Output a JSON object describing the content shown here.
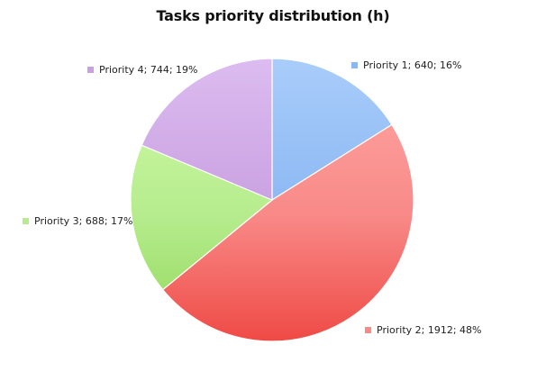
{
  "chart_data": {
    "type": "pie",
    "title": "Tasks priority distribution (h)",
    "slices": [
      {
        "label": "Priority 1; 640; 16%",
        "name": "Priority 1",
        "value": 640,
        "percent": 16,
        "color": "#8bb7f2",
        "colorLight": "#a9cdfb",
        "colorDark": "#4a8ee0"
      },
      {
        "label": "Priority 2; 1912; 48%",
        "name": "Priority 2",
        "value": 1912,
        "percent": 48,
        "color": "#f88a88",
        "colorLight": "#ffa8a6",
        "colorDark": "#ef4a45"
      },
      {
        "label": "Priority 3; 688; 17%",
        "name": "Priority 3",
        "value": 688,
        "percent": 17,
        "color": "#b6ec8e",
        "colorLight": "#d3fba9",
        "colorDark": "#92d85a"
      },
      {
        "label": "Priority 4; 744; 19%",
        "name": "Priority 4",
        "value": 744,
        "percent": 19,
        "color": "#c9a0e0",
        "colorLight": "#dcbcf0",
        "colorDark": "#a06ac4"
      }
    ],
    "start_angle": "12 o'clock",
    "direction": "clockwise",
    "legend": "labels next to slices"
  }
}
